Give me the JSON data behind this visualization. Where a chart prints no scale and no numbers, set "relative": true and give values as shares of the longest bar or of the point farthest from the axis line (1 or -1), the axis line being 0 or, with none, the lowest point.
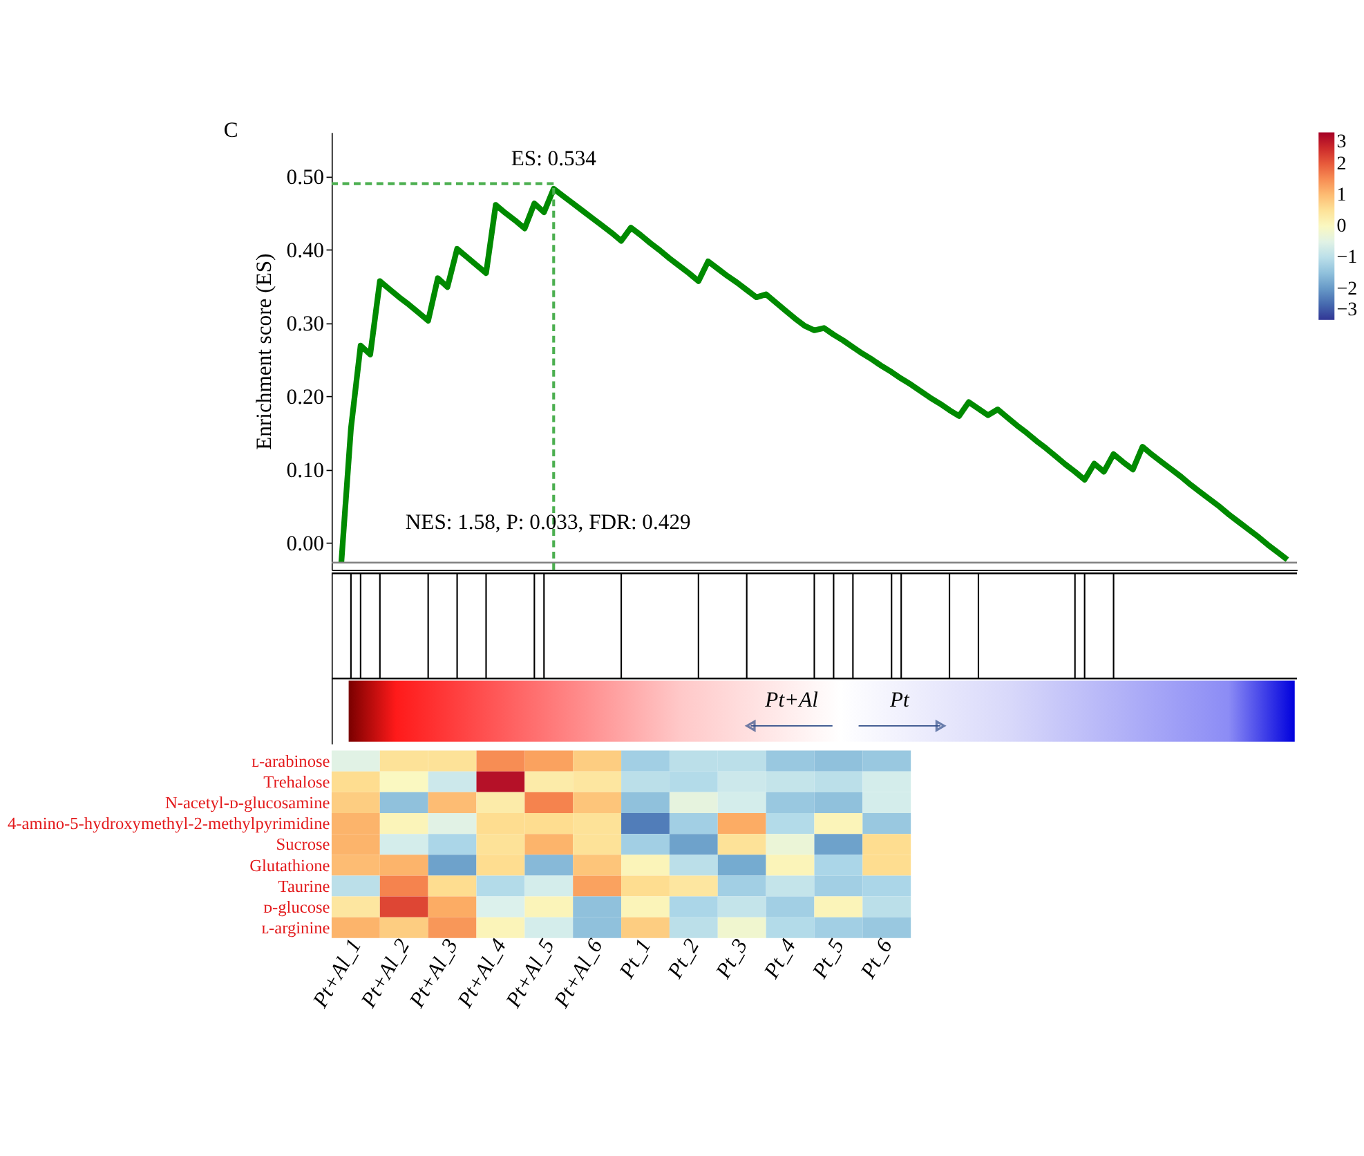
{
  "chart_data": [
    {
      "type": "line",
      "title": "C",
      "ylabel": "Enrichment score (ES)",
      "tick_labels": "y",
      "grid": false,
      "ylim": [
        -0.037,
        0.56
      ],
      "yticks": [
        {
          "value": 0,
          "label": "0.00"
        },
        {
          "value": 0.1,
          "label": "0.10"
        },
        {
          "value": 0.2,
          "label": "0.20"
        },
        {
          "value": 0.3,
          "label": "0.30"
        },
        {
          "value": 0.4,
          "label": "0.40"
        },
        {
          "value": 0.5,
          "label": "0.50"
        }
      ],
      "categories": [
        null,
        null,
        null,
        null,
        null,
        null,
        null,
        null,
        null,
        null,
        null,
        null,
        null,
        null,
        null,
        null,
        null,
        null,
        null,
        null,
        null,
        null,
        null,
        null,
        null,
        null,
        null,
        null,
        null,
        null,
        null,
        null,
        null,
        null,
        null,
        null,
        null,
        null,
        null,
        null,
        null,
        null,
        null,
        null,
        null,
        null,
        null,
        null,
        null,
        null,
        null,
        null,
        null,
        null,
        null,
        null,
        null,
        null,
        null,
        null,
        null,
        null,
        null,
        null,
        null,
        null,
        null,
        null,
        null,
        null,
        null,
        null,
        null,
        null,
        null,
        null,
        null,
        null,
        null,
        null,
        null,
        null,
        null,
        null,
        null,
        null,
        null,
        null,
        null,
        null,
        null,
        null,
        null,
        null,
        null,
        null,
        null,
        null,
        null
      ],
      "series": [
        {
          "color": "#008a00",
          "line_style": "solid",
          "values": [
            -0.028,
            0.156,
            0.269,
            0.257,
            0.357,
            0.346,
            0.335,
            0.325,
            0.314,
            0.303,
            0.361,
            0.349,
            0.401,
            0.39,
            0.379,
            0.368,
            0.461,
            0.45,
            0.44,
            0.429,
            0.463,
            0.451,
            0.483,
            0.473,
            0.463,
            0.453,
            0.443,
            0.433,
            0.423,
            0.412,
            0.43,
            0.42,
            0.409,
            0.399,
            0.388,
            0.378,
            0.368,
            0.357,
            0.384,
            0.374,
            0.364,
            0.355,
            0.345,
            0.335,
            0.339,
            0.328,
            0.317,
            0.306,
            0.296,
            0.29,
            0.293,
            0.284,
            0.276,
            0.267,
            0.258,
            0.25,
            0.241,
            0.233,
            0.224,
            0.216,
            0.207,
            0.198,
            0.19,
            0.181,
            0.173,
            0.192,
            0.183,
            0.174,
            0.182,
            0.171,
            0.16,
            0.15,
            0.139,
            0.129,
            0.118,
            0.107,
            0.097,
            0.086,
            0.108,
            0.097,
            0.121,
            0.11,
            0.1,
            0.131,
            0.12,
            0.11,
            0.1,
            0.09,
            0.079,
            0.069,
            0.059,
            0.049,
            0.038,
            0.028,
            0.018,
            0.008,
            -0.003,
            -0.013,
            -0.023
          ]
        }
      ],
      "ref_lines": [
        {
          "axis": "y",
          "value": -0.027,
          "color": "#808080",
          "line_style": "solid"
        },
        {
          "axis": "y",
          "value": 0.49,
          "color": "#4caf50",
          "line_style": "dashed"
        }
      ],
      "annotations": [
        {
          "text": "ES: 0.534",
          "y": 0.49
        },
        "NES: 1.58, P: 0.033, FDR: 0.429"
      ]
    },
    {
      "type": "bar",
      "relative": true,
      "tick_labels": false,
      "categories": [
        null,
        null,
        null,
        null,
        null,
        null,
        null,
        null,
        null,
        null,
        null,
        null,
        null,
        null,
        null,
        null,
        null,
        null,
        null,
        null,
        null,
        null,
        null,
        null,
        null,
        null,
        null,
        null,
        null,
        null,
        null,
        null,
        null,
        null,
        null,
        null,
        null,
        null,
        null,
        null,
        null,
        null,
        null,
        null,
        null,
        null,
        null,
        null,
        null,
        null,
        null,
        null,
        null,
        null,
        null,
        null,
        null,
        null,
        null,
        null,
        null,
        null,
        null,
        null,
        null,
        null,
        null,
        null,
        null,
        null,
        null,
        null,
        null,
        null,
        null,
        null,
        null,
        null,
        null,
        null,
        null,
        null,
        null,
        null,
        null,
        null,
        null,
        null,
        null,
        null,
        null,
        null,
        null,
        null,
        null,
        null,
        null,
        null,
        null
      ],
      "values": [
        0,
        1,
        1,
        0,
        1,
        0,
        0,
        0,
        0,
        1,
        0,
        0,
        1,
        0,
        0,
        1,
        0,
        0,
        0,
        0,
        1,
        1,
        0,
        0,
        0,
        0,
        0,
        0,
        0,
        1,
        0,
        0,
        0,
        0,
        0,
        0,
        0,
        1,
        0,
        0,
        0,
        0,
        1,
        0,
        0,
        0,
        0,
        0,
        0,
        1,
        0,
        1,
        0,
        1,
        0,
        0,
        0,
        1,
        1,
        0,
        0,
        0,
        0,
        1,
        0,
        0,
        1,
        0,
        0,
        0,
        0,
        0,
        0,
        0,
        0,
        0,
        1,
        1,
        0,
        0,
        1,
        0,
        0,
        0,
        0,
        0,
        0,
        0,
        0,
        0,
        0,
        0,
        0,
        0,
        0,
        0,
        0,
        0,
        0
      ],
      "color": "#000000",
      "annotations": [
        "Pt+Al",
        "Pt"
      ]
    },
    {
      "type": "heatmap",
      "categories": [
        "Pt+Al_1",
        "Pt+Al_2",
        "Pt+Al_3",
        "Pt+Al_4",
        "Pt+Al_5",
        "Pt+Al_6",
        "Pt_1",
        "Pt_2",
        "Pt_3",
        "Pt_4",
        "Pt_5",
        "Pt_6"
      ],
      "y_categories": [
        "ʟ-arabinose",
        "Trehalose",
        "N-acetyl-ᴅ-glucosamine",
        "4-amino-5-hydroxymethyl-2-methylpyrimidine",
        "Sucrose",
        "Glutathione",
        "Taurine",
        "ᴅ-glucose",
        "ʟ-arginine"
      ],
      "cells": [
        [
          -0.5,
          0.5,
          0.5,
          1.5,
          1.3,
          0.8,
          -1.3,
          -1.0,
          -1.0,
          -1.4,
          -1.5,
          -1.4
        ],
        [
          0.6,
          0.0,
          -0.8,
          2.8,
          0.3,
          0.4,
          -1.0,
          -1.1,
          -0.8,
          -0.9,
          -1.0,
          -0.7
        ],
        [
          0.8,
          -1.5,
          1.0,
          0.3,
          1.6,
          0.9,
          -1.5,
          -0.4,
          -0.7,
          -1.4,
          -1.5,
          -0.7
        ],
        [
          1.1,
          0.1,
          -0.5,
          0.6,
          0.6,
          0.5,
          -2.3,
          -1.3,
          1.2,
          -1.1,
          0.1,
          -1.4
        ],
        [
          1.1,
          -0.7,
          -1.2,
          0.5,
          1.1,
          0.5,
          -1.3,
          -1.9,
          0.5,
          -0.3,
          -1.9,
          0.6
        ],
        [
          1.0,
          1.1,
          -1.9,
          0.6,
          -1.6,
          0.9,
          0.1,
          -1.0,
          -1.8,
          0.1,
          -1.2,
          0.6
        ],
        [
          -1.0,
          1.6,
          0.6,
          -1.1,
          -0.7,
          1.3,
          0.6,
          0.4,
          -1.3,
          -0.9,
          -1.3,
          -1.2
        ],
        [
          0.4,
          2.2,
          1.2,
          -0.6,
          0.1,
          -1.5,
          0.1,
          -1.2,
          -0.9,
          -1.3,
          0.1,
          -1.0
        ],
        [
          1.1,
          0.8,
          1.4,
          0.1,
          -0.7,
          -1.5,
          0.8,
          -1.0,
          -0.2,
          -1.1,
          -1.3,
          -1.4
        ]
      ],
      "clim": [
        -3,
        3
      ],
      "cticks": [
        {
          "value": 3,
          "label": "3"
        },
        {
          "value": 2,
          "label": "2"
        },
        {
          "value": 1,
          "label": "1"
        },
        {
          "value": 0,
          "label": "0"
        },
        {
          "value": -1,
          "label": "−1"
        },
        {
          "value": -2,
          "label": "−2"
        },
        {
          "value": -3,
          "label": "−3"
        }
      ]
    }
  ]
}
